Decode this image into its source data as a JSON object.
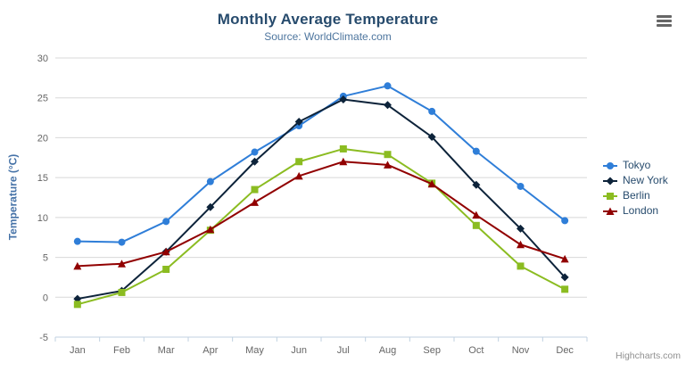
{
  "chart_data": {
    "type": "line",
    "title": "Monthly Average Temperature",
    "subtitle": "Source: WorldClimate.com",
    "xlabel": "",
    "ylabel": "Temperature (°C)",
    "categories": [
      "Jan",
      "Feb",
      "Mar",
      "Apr",
      "May",
      "Jun",
      "Jul",
      "Aug",
      "Sep",
      "Oct",
      "Nov",
      "Dec"
    ],
    "ylim": [
      -5,
      30
    ],
    "ytick_step": 5,
    "grid": true,
    "legend_position": "right",
    "series": [
      {
        "name": "Tokyo",
        "color": "#2f7ed8",
        "marker": "circle",
        "values": [
          7.0,
          6.9,
          9.5,
          14.5,
          18.2,
          21.5,
          25.2,
          26.5,
          23.3,
          18.3,
          13.9,
          9.6
        ]
      },
      {
        "name": "New York",
        "color": "#0d233a",
        "marker": "diamond",
        "values": [
          -0.2,
          0.8,
          5.7,
          11.3,
          17.0,
          22.0,
          24.8,
          24.1,
          20.1,
          14.1,
          8.6,
          2.5
        ]
      },
      {
        "name": "Berlin",
        "color": "#8bbc21",
        "marker": "square",
        "values": [
          -0.9,
          0.6,
          3.5,
          8.4,
          13.5,
          17.0,
          18.6,
          17.9,
          14.3,
          9.0,
          3.9,
          1.0
        ]
      },
      {
        "name": "London",
        "color": "#910000",
        "marker": "triangle",
        "values": [
          3.9,
          4.2,
          5.7,
          8.5,
          11.9,
          15.2,
          17.0,
          16.6,
          14.2,
          10.3,
          6.6,
          4.8
        ]
      }
    ]
  },
  "colors": {
    "title": "#274b6d",
    "subtitle": "#4d759e",
    "yaxis_title": "#4572a7",
    "axis_label": "#666666",
    "axis_line": "#c0d0e0",
    "gridline": "#d8d8d8",
    "legend_text": "#274b6d",
    "credits_text": "#909090",
    "menu_icon": "#666666"
  },
  "credits": {
    "label": "Highcharts.com"
  }
}
